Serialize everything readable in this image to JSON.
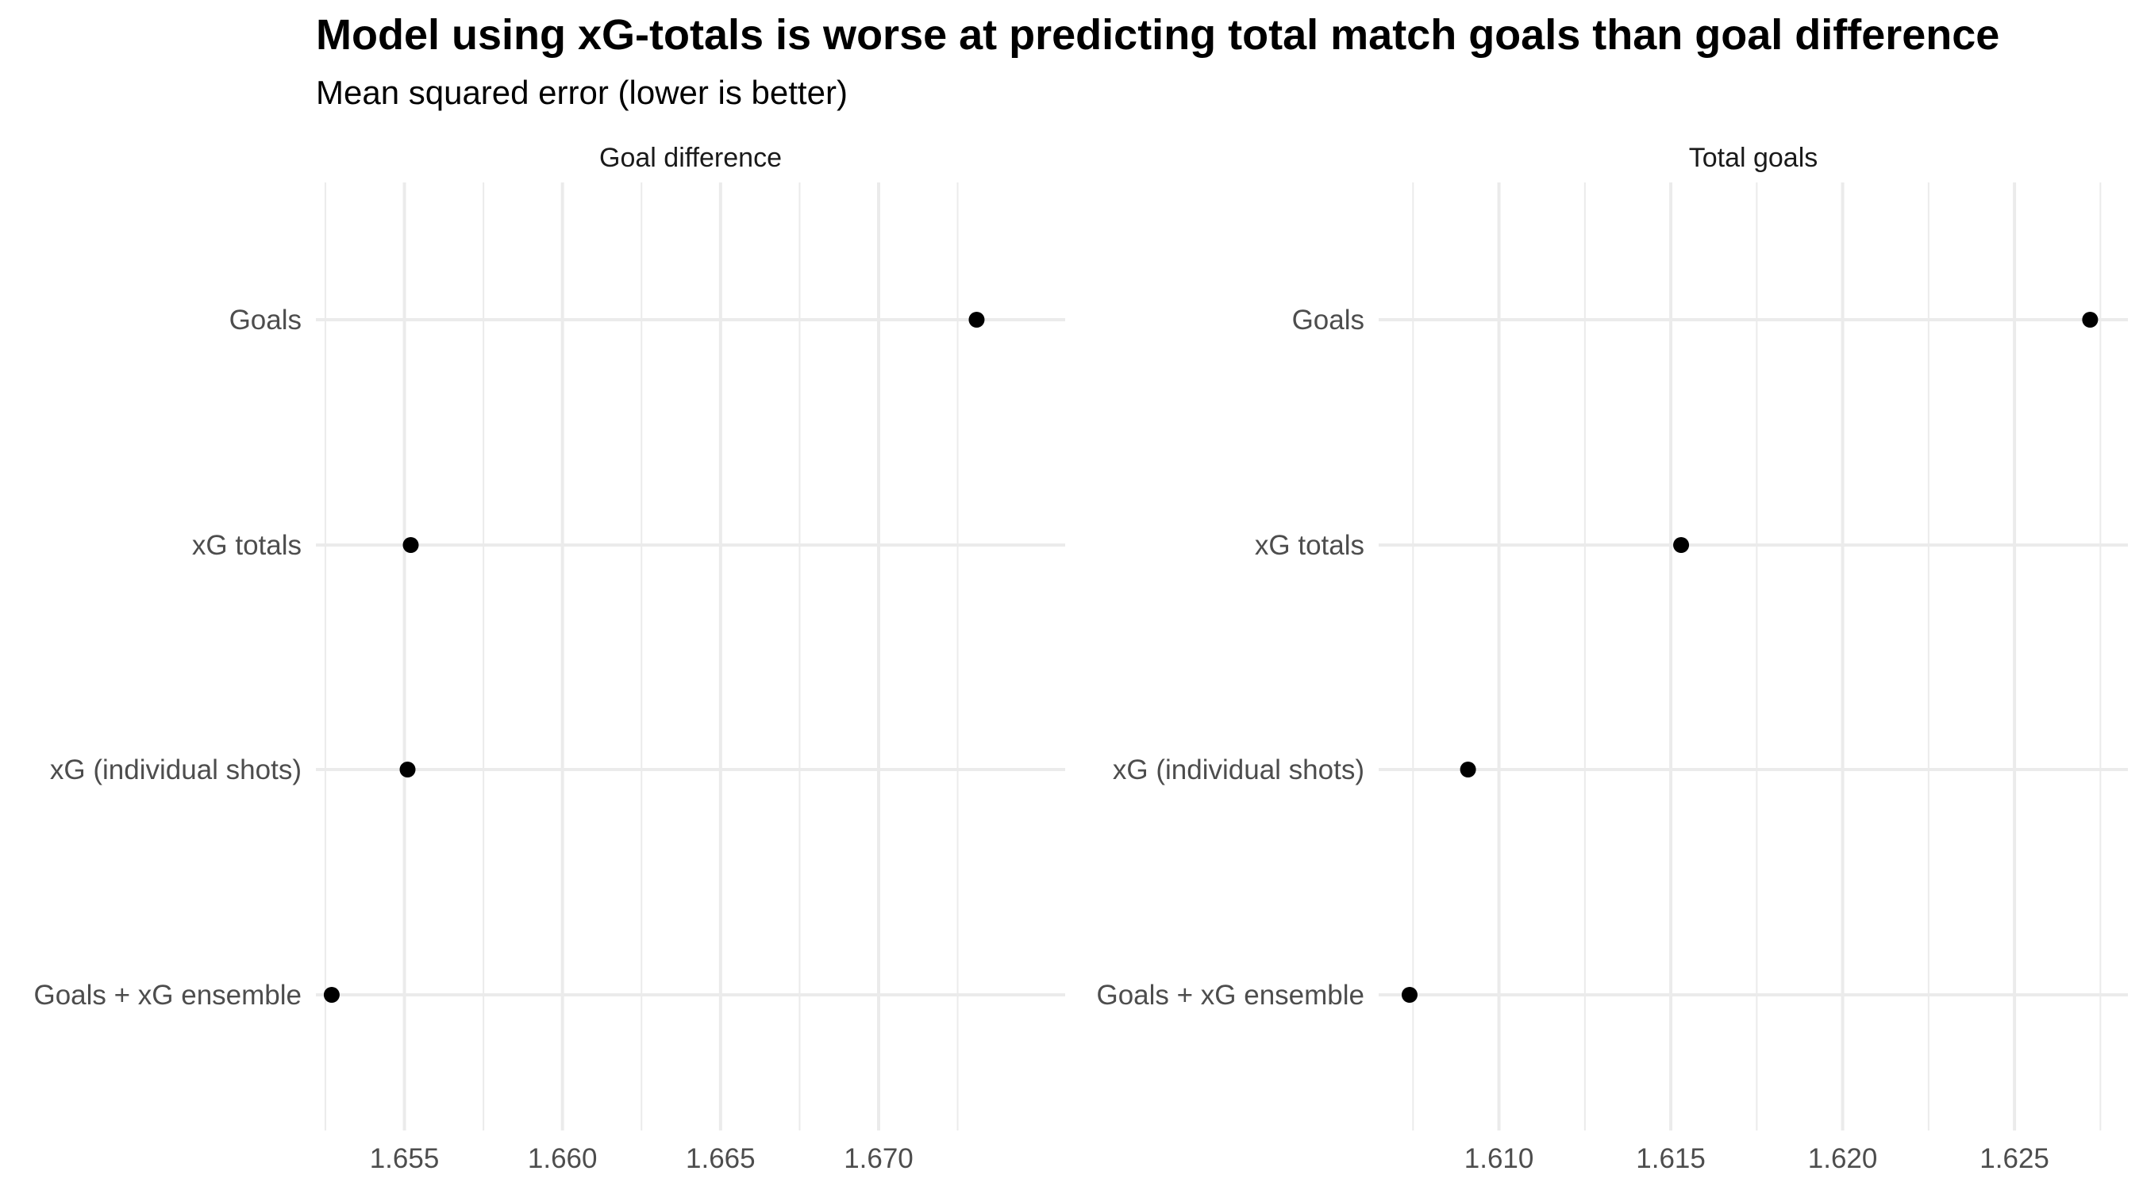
{
  "chart_data": {
    "type": "scatter",
    "title": "Model using xG-totals is worse at predicting total match goals than goal difference",
    "subtitle": "Mean squared error (lower is better)",
    "categories": [
      "Goals",
      "xG totals",
      "xG (individual shots)",
      "Goals + xG ensemble"
    ],
    "grid": true,
    "legend": "none",
    "panels": [
      {
        "name": "Goal difference",
        "xlim": [
          1.6522,
          1.6759
        ],
        "xticks": [
          1.655,
          1.66,
          1.665,
          1.67
        ],
        "xtick_labels": [
          "1.655",
          "1.660",
          "1.665",
          "1.670"
        ],
        "values": [
          1.6731,
          1.6552,
          1.6551,
          1.6527
        ]
      },
      {
        "name": "Total goals",
        "xlim": [
          1.6065,
          1.6283
        ],
        "xticks": [
          1.61,
          1.615,
          1.62,
          1.625
        ],
        "xtick_labels": [
          "1.610",
          "1.615",
          "1.620",
          "1.625"
        ],
        "values": [
          1.6272,
          1.6153,
          1.6091,
          1.6074
        ]
      }
    ]
  }
}
